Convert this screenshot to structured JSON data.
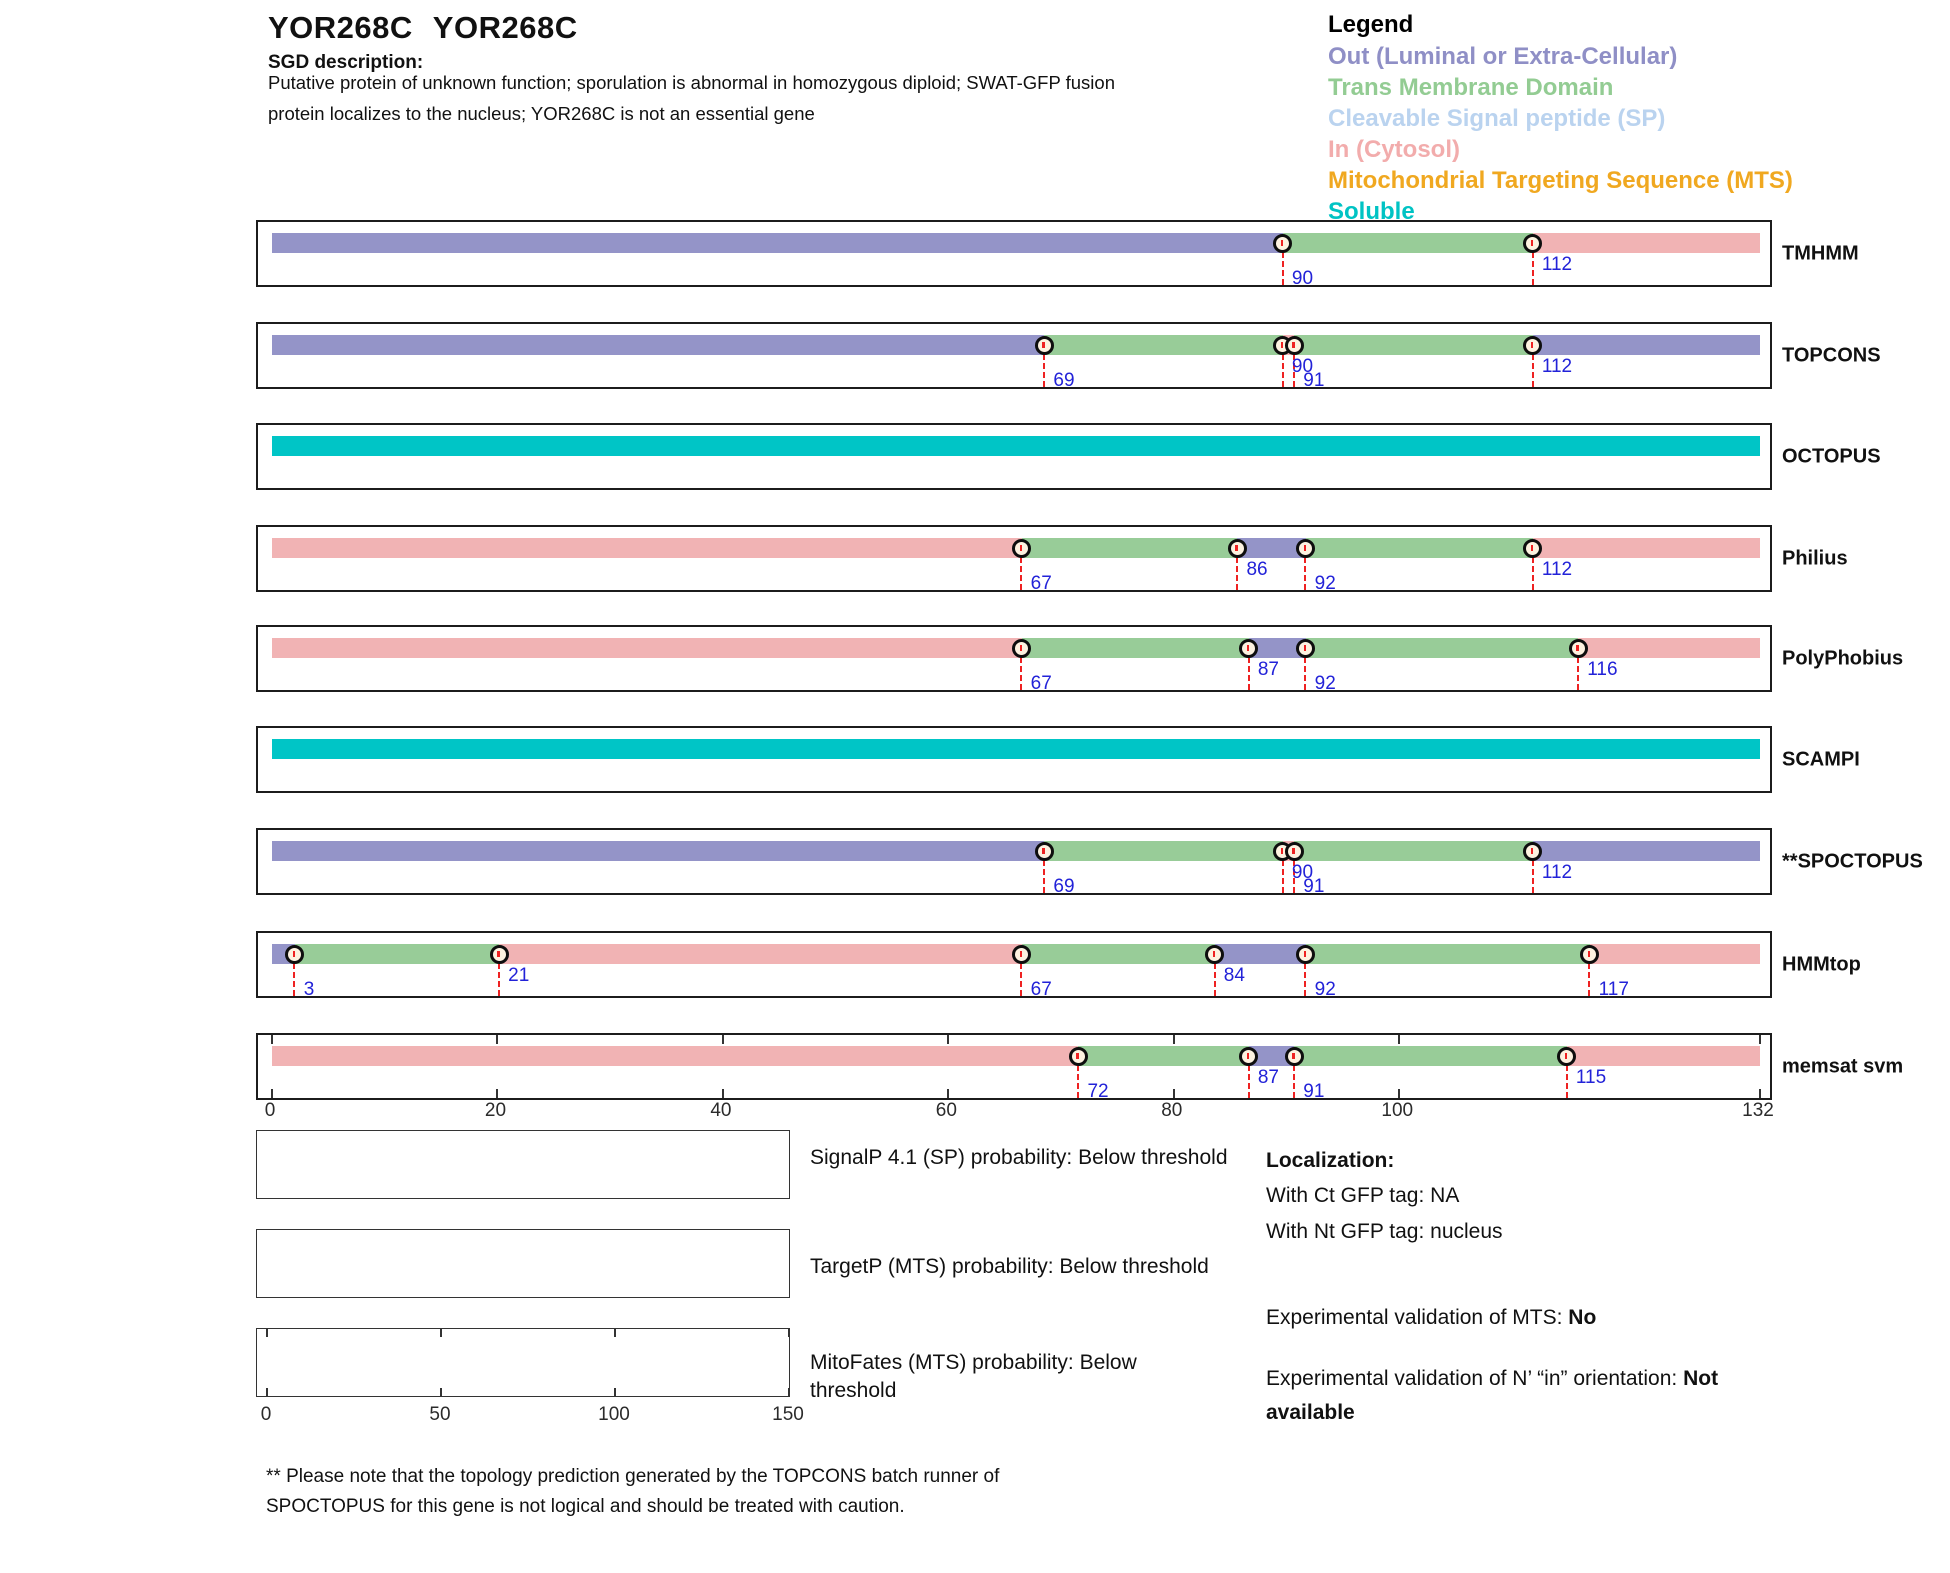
{
  "header": {
    "gene_id": "YOR268C",
    "gene_name": "YOR268C",
    "sgd_heading": "SGD description:",
    "description_lines": [
      "Putative protein of unknown function; sporulation is abnormal in homozygous diploid; SWAT-GFP fusion",
      "protein localizes to the nucleus; YOR268C is not an essential gene"
    ]
  },
  "legend": {
    "heading": "Legend",
    "items": [
      {
        "label": "Out (Luminal or Extra-Cellular)",
        "color": "#8f8fc6"
      },
      {
        "label": "Trans Membrane Domain",
        "color": "#93cc93"
      },
      {
        "label": "Cleavable Signal peptide (SP)",
        "color": "#bad3ef"
      },
      {
        "label": "In (Cytosol)",
        "color": "#f2acac"
      },
      {
        "label": "Mitochondrial Targeting Sequence (MTS)",
        "color": "#f0a820"
      },
      {
        "label": "Soluble",
        "color": "#00c3c4"
      }
    ]
  },
  "colors": {
    "out": "#9494c8",
    "tm": "#98cc98",
    "in": "#f1b3b4",
    "soluble": "#00c5c6",
    "marker_fill": "#fdf2e0",
    "guide_line": "#ee2222",
    "position_number": "#2222d8"
  },
  "chart_data": {
    "type": "topology-tracks",
    "x_axis": {
      "range": [
        0,
        132
      ],
      "ticks": [
        0,
        20,
        40,
        60,
        80,
        100,
        132
      ]
    },
    "region_legend": {
      "out": "Out (Luminal or Extra-Cellular)",
      "tm": "Trans Membrane Domain",
      "in": "In (Cytosol)",
      "soluble": "Soluble"
    },
    "tracks": [
      {
        "name": "TMHMM",
        "segments": [
          {
            "from": 1,
            "to": 90,
            "type": "out"
          },
          {
            "from": 90,
            "to": 112,
            "type": "tm"
          },
          {
            "from": 112,
            "to": 132,
            "type": "in"
          }
        ],
        "markers": [
          {
            "pos": 90,
            "level": "low"
          },
          {
            "pos": 112,
            "level": "high"
          }
        ]
      },
      {
        "name": "TOPCONS",
        "segments": [
          {
            "from": 1,
            "to": 69,
            "type": "out"
          },
          {
            "from": 69,
            "to": 90,
            "type": "tm"
          },
          {
            "from": 90,
            "to": 91,
            "type": "in"
          },
          {
            "from": 91,
            "to": 112,
            "type": "tm"
          },
          {
            "from": 112,
            "to": 132,
            "type": "out"
          }
        ],
        "markers": [
          {
            "pos": 69,
            "level": "low"
          },
          {
            "pos": 90,
            "level": "high"
          },
          {
            "pos": 91,
            "level": "low"
          },
          {
            "pos": 112,
            "level": "high"
          }
        ]
      },
      {
        "name": "OCTOPUS",
        "segments": [
          {
            "from": 1,
            "to": 132,
            "type": "soluble"
          }
        ],
        "markers": []
      },
      {
        "name": "Philius",
        "segments": [
          {
            "from": 1,
            "to": 67,
            "type": "in"
          },
          {
            "from": 67,
            "to": 86,
            "type": "tm"
          },
          {
            "from": 86,
            "to": 92,
            "type": "out"
          },
          {
            "from": 92,
            "to": 112,
            "type": "tm"
          },
          {
            "from": 112,
            "to": 132,
            "type": "in"
          }
        ],
        "markers": [
          {
            "pos": 67,
            "level": "low"
          },
          {
            "pos": 86,
            "level": "high"
          },
          {
            "pos": 92,
            "level": "low"
          },
          {
            "pos": 112,
            "level": "high"
          }
        ]
      },
      {
        "name": "PolyPhobius",
        "segments": [
          {
            "from": 1,
            "to": 67,
            "type": "in"
          },
          {
            "from": 67,
            "to": 87,
            "type": "tm"
          },
          {
            "from": 87,
            "to": 92,
            "type": "out"
          },
          {
            "from": 92,
            "to": 116,
            "type": "tm"
          },
          {
            "from": 116,
            "to": 132,
            "type": "in"
          }
        ],
        "markers": [
          {
            "pos": 67,
            "level": "low"
          },
          {
            "pos": 87,
            "level": "high"
          },
          {
            "pos": 92,
            "level": "low"
          },
          {
            "pos": 116,
            "level": "high"
          }
        ]
      },
      {
        "name": "SCAMPI",
        "segments": [
          {
            "from": 1,
            "to": 132,
            "type": "soluble"
          }
        ],
        "markers": []
      },
      {
        "name": "**SPOCTOPUS",
        "segments": [
          {
            "from": 1,
            "to": 69,
            "type": "out"
          },
          {
            "from": 69,
            "to": 90,
            "type": "tm"
          },
          {
            "from": 90,
            "to": 91,
            "type": "in"
          },
          {
            "from": 91,
            "to": 112,
            "type": "tm"
          },
          {
            "from": 112,
            "to": 132,
            "type": "out"
          }
        ],
        "markers": [
          {
            "pos": 69,
            "level": "low"
          },
          {
            "pos": 90,
            "level": "high"
          },
          {
            "pos": 91,
            "level": "low"
          },
          {
            "pos": 112,
            "level": "high"
          }
        ]
      },
      {
        "name": "HMMtop",
        "segments": [
          {
            "from": 1,
            "to": 3,
            "type": "out"
          },
          {
            "from": 3,
            "to": 21,
            "type": "tm"
          },
          {
            "from": 21,
            "to": 67,
            "type": "in"
          },
          {
            "from": 67,
            "to": 84,
            "type": "tm"
          },
          {
            "from": 84,
            "to": 92,
            "type": "out"
          },
          {
            "from": 92,
            "to": 117,
            "type": "tm"
          },
          {
            "from": 117,
            "to": 132,
            "type": "in"
          }
        ],
        "markers": [
          {
            "pos": 3,
            "level": "low"
          },
          {
            "pos": 21,
            "level": "high"
          },
          {
            "pos": 67,
            "level": "low"
          },
          {
            "pos": 84,
            "level": "high"
          },
          {
            "pos": 92,
            "level": "low"
          },
          {
            "pos": 117,
            "level": "low"
          }
        ]
      },
      {
        "name": "memsat svm",
        "scale_ticks": true,
        "segments": [
          {
            "from": 1,
            "to": 72,
            "type": "in"
          },
          {
            "from": 72,
            "to": 87,
            "type": "tm"
          },
          {
            "from": 87,
            "to": 91,
            "type": "out"
          },
          {
            "from": 91,
            "to": 115,
            "type": "tm"
          },
          {
            "from": 115,
            "to": 132,
            "type": "in"
          }
        ],
        "markers": [
          {
            "pos": 72,
            "level": "low"
          },
          {
            "pos": 87,
            "level": "high"
          },
          {
            "pos": 91,
            "level": "low"
          },
          {
            "pos": 115,
            "level": "high"
          }
        ]
      }
    ],
    "probability_plots": [
      {
        "label": "SignalP 4.1 (SP) probability: Below threshold"
      },
      {
        "label": "TargetP (MTS) probability: Below threshold"
      },
      {
        "label": "MitoFates (MTS) probability: Below threshold",
        "axis_ticks": [
          0,
          50,
          100,
          150
        ]
      }
    ]
  },
  "results": {
    "localization_heading": "Localization:",
    "ct_tag": "With Ct GFP tag: NA",
    "nt_tag": "With Nt GFP tag: nucleus",
    "mts_prefix": "Experimental validation of MTS: ",
    "mts_value": "No",
    "orientation_prefix": "Experimental validation of N’ “in” orientation: ",
    "orientation_value": "Not available"
  },
  "footnote_lines": [
    "** Please note that the topology prediction generated by the TOPCONS batch runner of",
    "SPOCTOPUS for this gene is not logical and should be treated with caution."
  ]
}
